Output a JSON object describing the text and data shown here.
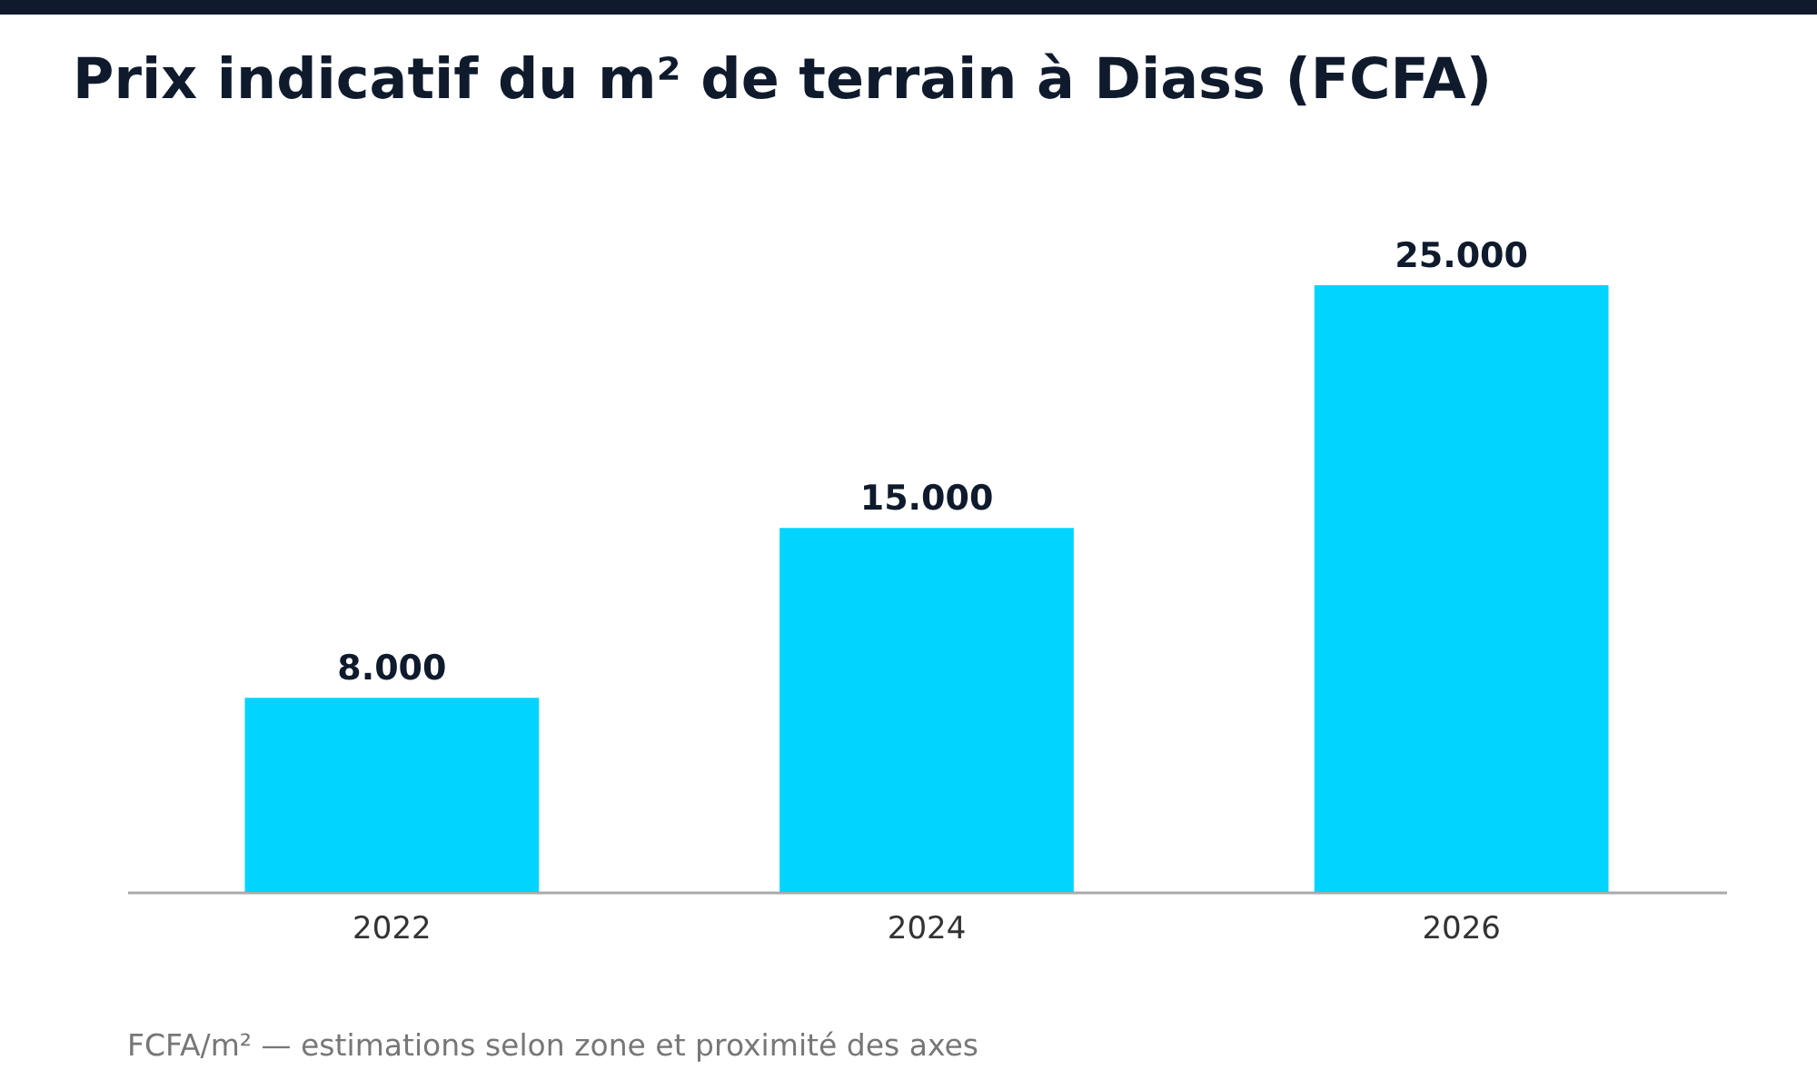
{
  "chart_data": {
    "type": "bar",
    "title": "Prix indicatif du m² de terrain à Diass (FCFA)",
    "categories": [
      "2022",
      "2024",
      "2026"
    ],
    "values": [
      8000,
      15000,
      25000
    ],
    "value_labels": [
      "8.000",
      "15.000",
      "25.000"
    ],
    "color": "#00d4ff",
    "annotations": [
      "FCFA/m² — estimations selon zone et proximité des axes"
    ]
  }
}
